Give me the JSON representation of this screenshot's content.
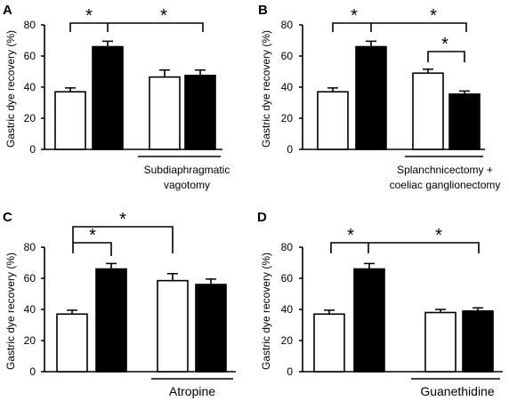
{
  "chart_data": [
    {
      "panel_label": "A",
      "type": "bar",
      "ylabel": "Gastric dye recovery (%)",
      "ylim": [
        0,
        80
      ],
      "yticks": [
        "0",
        "20",
        "40",
        "60",
        "80"
      ],
      "values": [
        37,
        66,
        46.5,
        47.5
      ],
      "errors": [
        2.5,
        3.5,
        4.5,
        3.5
      ],
      "fills": [
        "white",
        "black",
        "white",
        "black"
      ],
      "group_label": [
        "Subdiaphragmatic",
        "vagotomy"
      ],
      "significance_marks": [
        "*",
        "*"
      ]
    },
    {
      "panel_label": "B",
      "type": "bar",
      "ylabel": "Gastric dye recovery (%)",
      "ylim": [
        0,
        80
      ],
      "yticks": [
        "0",
        "20",
        "40",
        "60",
        "80"
      ],
      "values": [
        37,
        66,
        49,
        35.5
      ],
      "errors": [
        2.5,
        3.5,
        2.5,
        2
      ],
      "fills": [
        "white",
        "black",
        "white",
        "black"
      ],
      "group_label": [
        "Splanchnicectomy +",
        "coeliac ganglionectomy"
      ],
      "significance_marks": [
        "*",
        "*",
        "*"
      ]
    },
    {
      "panel_label": "C",
      "type": "bar",
      "ylabel": "Gastric dye recovery (%)",
      "ylim": [
        0,
        80
      ],
      "yticks": [
        "0",
        "20",
        "40",
        "60",
        "80"
      ],
      "values": [
        37,
        66,
        58.5,
        56
      ],
      "errors": [
        2.5,
        3.5,
        4.5,
        3.5
      ],
      "fills": [
        "white",
        "black",
        "white",
        "black"
      ],
      "group_label": [
        "Atropine"
      ],
      "significance_marks": [
        "*",
        "*"
      ]
    },
    {
      "panel_label": "D",
      "type": "bar",
      "ylabel": "Gastric dye recovery (%)",
      "ylim": [
        0,
        80
      ],
      "yticks": [
        "0",
        "20",
        "40",
        "60",
        "80"
      ],
      "values": [
        37,
        66,
        38,
        39
      ],
      "errors": [
        2.5,
        3.5,
        2,
        2
      ],
      "fills": [
        "white",
        "black",
        "white",
        "black"
      ],
      "group_label": [
        "Guanethidine"
      ],
      "significance_marks": [
        "*",
        "*"
      ]
    }
  ],
  "colors": {
    "white_bar": "#ffffff",
    "black_bar": "#000000",
    "axis": "#000000"
  }
}
